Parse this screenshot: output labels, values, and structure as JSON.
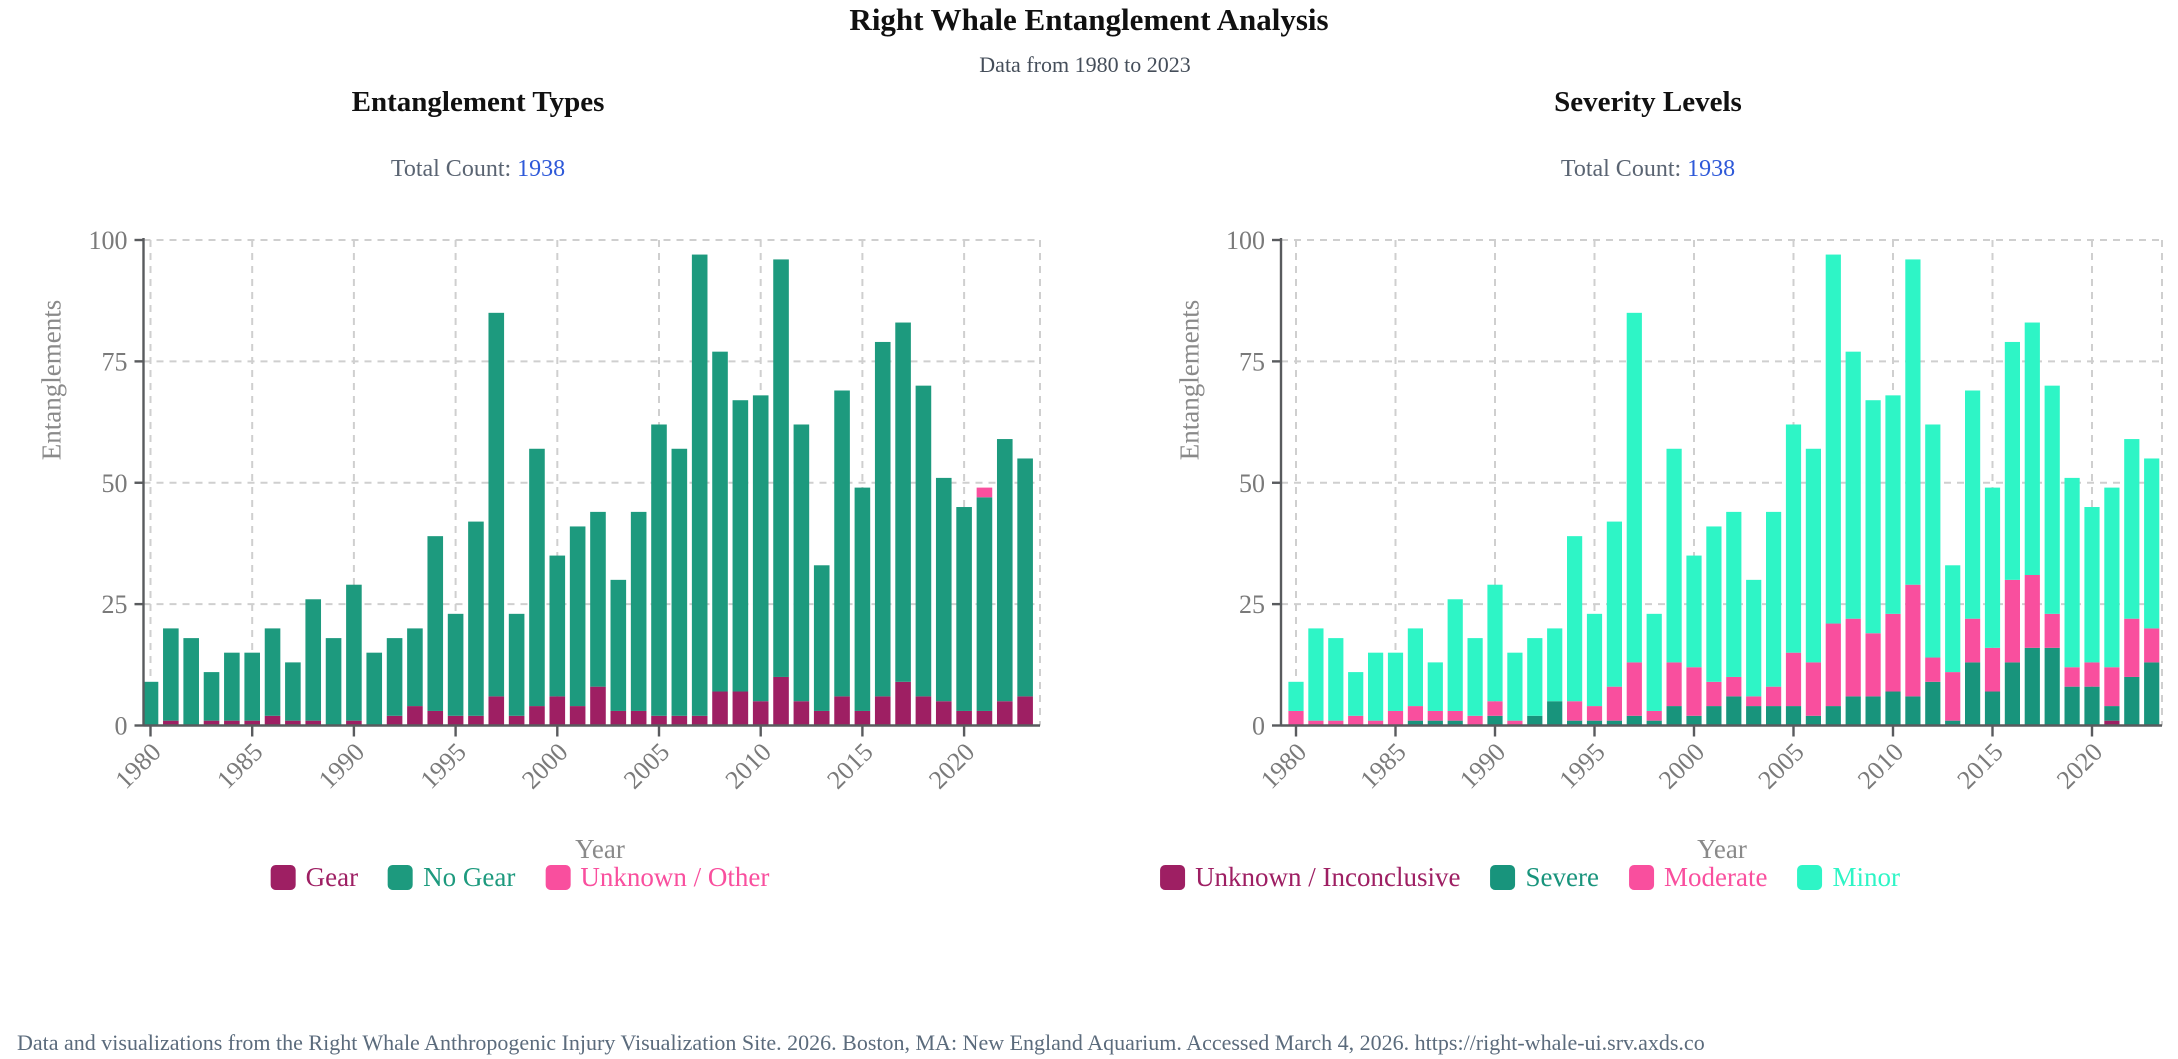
{
  "page": {
    "title": "Right Whale Entanglement Analysis",
    "subtitle": "Data from 1980 to 2023",
    "footer": "Data and visualizations from the Right Whale Anthropogenic Injury Visualization Site. 2026. Boston, MA: New England Aquarium. Accessed March 4, 2026. https://right-whale-ui.srv.axds.co"
  },
  "colors": {
    "maroon": "#9e1f63",
    "teal": "#1d9a7e",
    "pink": "#f94f9e",
    "mint": "#2ef5c6",
    "total_count_value": "#2e59d9",
    "axis": "#595b5e",
    "grid": "#cfcfcf",
    "tick_label": "#7a7a7a",
    "footer_text": "#5b6b7c"
  },
  "chart_data": [
    {
      "type": "bar",
      "stacked": true,
      "title": "Entanglement Types",
      "total_count_label": "Total Count:",
      "total_count": "1938",
      "xlabel": "Year",
      "ylabel": "Entanglements",
      "ylim": [
        0,
        100
      ],
      "yticks": [
        0,
        25,
        50,
        75,
        100
      ],
      "xticks": [
        1980,
        1985,
        1990,
        1995,
        2000,
        2005,
        2010,
        2015,
        2020
      ],
      "legend_position": "bottom",
      "grid": true,
      "categories": [
        1980,
        1981,
        1982,
        1983,
        1984,
        1985,
        1986,
        1987,
        1988,
        1989,
        1990,
        1991,
        1992,
        1993,
        1994,
        1995,
        1996,
        1997,
        1998,
        1999,
        2000,
        2001,
        2002,
        2003,
        2004,
        2005,
        2006,
        2007,
        2008,
        2009,
        2010,
        2011,
        2012,
        2013,
        2014,
        2015,
        2016,
        2017,
        2018,
        2019,
        2020,
        2021,
        2022,
        2023
      ],
      "series": [
        {
          "name": "Gear",
          "color": "#9e1f63",
          "values": [
            0,
            1,
            0,
            1,
            1,
            1,
            2,
            1,
            1,
            0,
            1,
            0,
            2,
            4,
            3,
            2,
            2,
            6,
            2,
            4,
            6,
            4,
            8,
            3,
            3,
            2,
            2,
            2,
            7,
            7,
            5,
            10,
            5,
            3,
            6,
            3,
            6,
            9,
            6,
            5,
            3,
            3,
            5,
            6
          ]
        },
        {
          "name": "No Gear",
          "color": "#1d9a7e",
          "values": [
            9,
            19,
            18,
            10,
            14,
            14,
            18,
            12,
            25,
            18,
            28,
            15,
            16,
            16,
            36,
            21,
            40,
            79,
            21,
            53,
            29,
            37,
            36,
            27,
            41,
            60,
            55,
            95,
            70,
            60,
            63,
            86,
            57,
            30,
            63,
            46,
            73,
            74,
            64,
            46,
            42,
            44,
            54,
            49
          ]
        },
        {
          "name": "Unknown / Other",
          "color": "#f94f9e",
          "values": [
            0,
            0,
            0,
            0,
            0,
            0,
            0,
            0,
            0,
            0,
            0,
            0,
            0,
            0,
            0,
            0,
            0,
            0,
            0,
            0,
            0,
            0,
            0,
            0,
            0,
            0,
            0,
            0,
            0,
            0,
            0,
            0,
            0,
            0,
            0,
            0,
            0,
            0,
            0,
            0,
            0,
            2,
            0,
            0
          ]
        }
      ]
    },
    {
      "type": "bar",
      "stacked": true,
      "title": "Severity Levels",
      "total_count_label": "Total Count:",
      "total_count": "1938",
      "xlabel": "Year",
      "ylabel": "Entanglements",
      "ylim": [
        0,
        100
      ],
      "yticks": [
        0,
        25,
        50,
        75,
        100
      ],
      "xticks": [
        1980,
        1985,
        1990,
        1995,
        2000,
        2005,
        2010,
        2015,
        2020
      ],
      "legend_position": "bottom",
      "grid": true,
      "categories": [
        1980,
        1981,
        1982,
        1983,
        1984,
        1985,
        1986,
        1987,
        1988,
        1989,
        1990,
        1991,
        1992,
        1993,
        1994,
        1995,
        1996,
        1997,
        1998,
        1999,
        2000,
        2001,
        2002,
        2003,
        2004,
        2005,
        2006,
        2007,
        2008,
        2009,
        2010,
        2011,
        2012,
        2013,
        2014,
        2015,
        2016,
        2017,
        2018,
        2019,
        2020,
        2021,
        2022,
        2023
      ],
      "series": [
        {
          "name": "Unknown / Inconclusive",
          "color": "#9e1f63",
          "values": [
            0,
            0,
            0,
            0,
            0,
            0,
            0,
            0,
            0,
            0,
            0,
            0,
            0,
            0,
            0,
            0,
            0,
            0,
            0,
            0,
            0,
            0,
            0,
            0,
            0,
            0,
            0,
            0,
            0,
            0,
            0,
            0,
            0,
            0,
            0,
            0,
            0,
            0,
            0,
            0,
            0,
            1,
            0,
            0
          ]
        },
        {
          "name": "Severe",
          "color": "#18947c",
          "values": [
            0,
            0,
            0,
            0,
            0,
            0,
            1,
            1,
            1,
            0,
            2,
            0,
            2,
            5,
            1,
            1,
            1,
            2,
            1,
            4,
            2,
            4,
            6,
            4,
            4,
            4,
            2,
            4,
            6,
            6,
            7,
            6,
            9,
            1,
            13,
            7,
            13,
            16,
            16,
            8,
            8,
            3,
            10,
            13
          ]
        },
        {
          "name": "Moderate",
          "color": "#f94f9e",
          "values": [
            3,
            1,
            1,
            2,
            1,
            3,
            3,
            2,
            2,
            2,
            3,
            1,
            0,
            0,
            4,
            3,
            7,
            11,
            2,
            9,
            10,
            5,
            4,
            2,
            4,
            11,
            11,
            17,
            16,
            13,
            16,
            23,
            5,
            10,
            9,
            9,
            17,
            15,
            7,
            4,
            5,
            8,
            12,
            7
          ]
        },
        {
          "name": "Minor",
          "color": "#2ef5c6",
          "values": [
            6,
            19,
            17,
            9,
            14,
            12,
            16,
            10,
            23,
            16,
            24,
            14,
            16,
            15,
            34,
            19,
            34,
            72,
            20,
            44,
            23,
            32,
            34,
            24,
            36,
            47,
            44,
            76,
            55,
            48,
            45,
            67,
            48,
            22,
            47,
            33,
            49,
            52,
            47,
            39,
            32,
            37,
            37,
            35
          ]
        }
      ]
    }
  ]
}
